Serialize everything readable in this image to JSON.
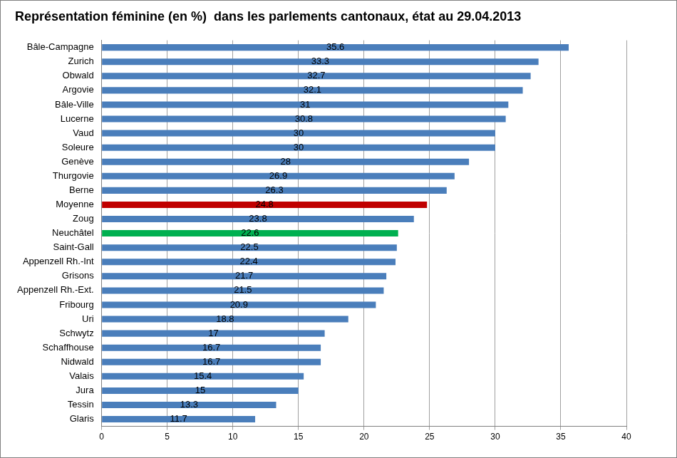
{
  "chart_data": {
    "type": "bar",
    "orientation": "horizontal",
    "title": "Représentation féminine (en %)  dans les parlements cantonaux, état au 29.04.2013",
    "categories": [
      "Bâle-Campagne",
      "Zurich",
      "Obwald",
      "Argovie",
      "Bâle-Ville",
      "Lucerne",
      "Vaud",
      "Soleure",
      "Genève",
      "Thurgovie",
      "Berne",
      "Moyenne",
      "Zoug",
      "Neuchâtel",
      "Saint-Gall",
      "Appenzell Rh.-Int",
      "Grisons",
      "Appenzell Rh.-Ext.",
      "Fribourg",
      "Uri",
      "Schwytz",
      "Schaffhouse",
      "Nidwald",
      "Valais",
      "Jura",
      "Tessin",
      "Glaris"
    ],
    "values": [
      35.6,
      33.3,
      32.7,
      32.1,
      31,
      30.8,
      30,
      30,
      28,
      26.9,
      26.3,
      24.8,
      23.8,
      22.6,
      22.5,
      22.4,
      21.7,
      21.5,
      20.9,
      18.8,
      17,
      16.7,
      16.7,
      15.4,
      15,
      13.3,
      11.7
    ],
    "colors": [
      "#4a7ebb",
      "#4a7ebb",
      "#4a7ebb",
      "#4a7ebb",
      "#4a7ebb",
      "#4a7ebb",
      "#4a7ebb",
      "#4a7ebb",
      "#4a7ebb",
      "#4a7ebb",
      "#4a7ebb",
      "#c00000",
      "#4a7ebb",
      "#00b050",
      "#4a7ebb",
      "#4a7ebb",
      "#4a7ebb",
      "#4a7ebb",
      "#4a7ebb",
      "#4a7ebb",
      "#4a7ebb",
      "#4a7ebb",
      "#4a7ebb",
      "#4a7ebb",
      "#4a7ebb",
      "#4a7ebb",
      "#4a7ebb"
    ],
    "xlim": [
      0,
      40
    ],
    "xticks": [
      0,
      5,
      10,
      15,
      20,
      25,
      30,
      35,
      40
    ],
    "grid": true,
    "data_labels": true
  }
}
